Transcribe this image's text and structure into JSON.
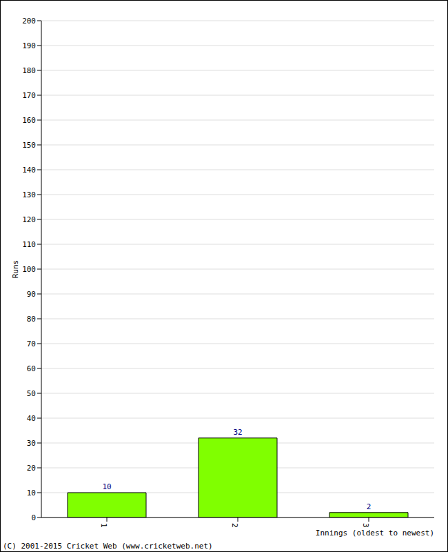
{
  "chart_data": {
    "type": "bar",
    "y_label": "Runs",
    "x_label": "Innings (oldest to newest)",
    "footer": "(C) 2001-2015 Cricket Web (www.cricketweb.net)",
    "categories": [
      "1",
      "2",
      "3"
    ],
    "values": [
      10,
      32,
      2
    ],
    "color": "#80ff00",
    "ylim": [
      0,
      200
    ],
    "yticks": [
      0,
      10,
      20,
      30,
      40,
      50,
      60,
      70,
      80,
      90,
      100,
      110,
      120,
      130,
      140,
      150,
      160,
      170,
      180,
      190,
      200
    ],
    "grid": true,
    "data_labels": true
  }
}
